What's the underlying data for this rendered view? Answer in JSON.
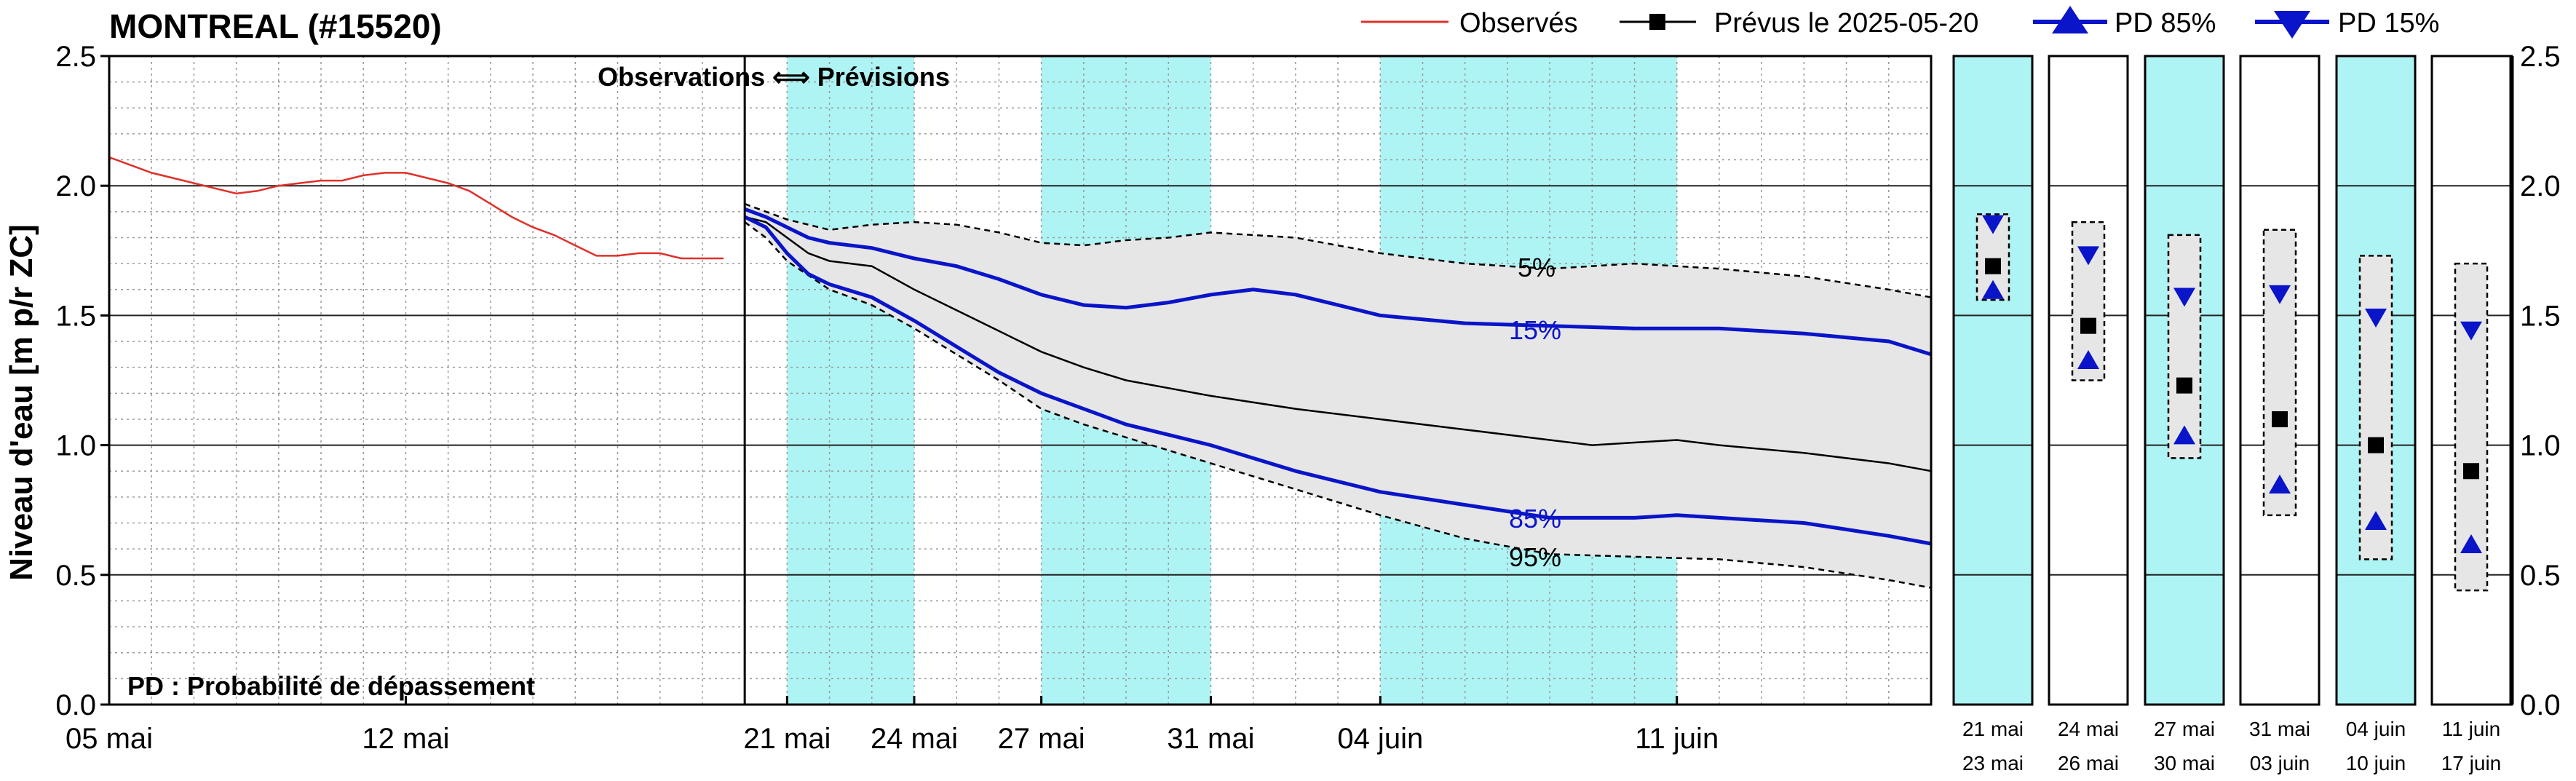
{
  "chart_data": {
    "type": "line",
    "title": "MONTREAL (#15520)",
    "ylabel": "Niveau d'eau [m p/r ZC]",
    "ylim": [
      0.0,
      2.5
    ],
    "yticks": [
      "0.0",
      "0.5",
      "1.0",
      "1.5",
      "2.0",
      "2.5"
    ],
    "grid": true,
    "legend_position": "top-right",
    "x_tick_labels": [
      {
        "day": 0,
        "label": "05 mai"
      },
      {
        "day": 7,
        "label": "12 mai"
      },
      {
        "day": 16,
        "label": "21 mai"
      },
      {
        "day": 19,
        "label": "24 mai"
      },
      {
        "day": 22,
        "label": "27 mai"
      },
      {
        "day": 26,
        "label": "31 mai"
      },
      {
        "day": 30,
        "label": "04 juin"
      },
      {
        "day": 37,
        "label": "11 juin"
      }
    ],
    "x_end_day": 43,
    "forecast_start_day": 15,
    "shaded_periods": [
      [
        16,
        19
      ],
      [
        22,
        26
      ],
      [
        30,
        37
      ]
    ],
    "annotations": {
      "obs_forecast": "Observations ⟺ Prévisions",
      "pd_note": "PD : Probabilité de dépassement",
      "p5": "5%",
      "p15": "15%",
      "p85": "85%",
      "p95": "95%"
    },
    "legend": {
      "observed": "Observés",
      "forecast": "Prévus le 2025-05-20",
      "pd85": "PD 85%",
      "pd15": "PD 15%"
    },
    "colors": {
      "observed": "#e0302a",
      "forecast": "#000000",
      "pd": "#0a14c8",
      "band": "#e6e6e6",
      "shade": "#aef4f4"
    },
    "series": [
      {
        "name": "Observés",
        "x": [
          0,
          0.5,
          1,
          1.5,
          2,
          2.5,
          3,
          3.5,
          4,
          4.5,
          5,
          5.5,
          6,
          6.5,
          7,
          7.5,
          8,
          8.5,
          9,
          9.5,
          10,
          10.5,
          11,
          11.5,
          12,
          12.5,
          13,
          13.5,
          14,
          14.5
        ],
        "values": [
          2.11,
          2.08,
          2.05,
          2.03,
          2.01,
          1.99,
          1.97,
          1.98,
          2.0,
          2.01,
          2.02,
          2.02,
          2.04,
          2.05,
          2.05,
          2.03,
          2.01,
          1.98,
          1.93,
          1.88,
          1.84,
          1.81,
          1.77,
          1.73,
          1.73,
          1.74,
          1.74,
          1.72,
          1.72,
          1.72
        ]
      },
      {
        "name": "Prévus le 2025-05-20",
        "x": [
          15,
          15.5,
          16,
          16.5,
          17,
          18,
          19,
          20,
          21,
          22,
          23,
          24,
          25,
          26,
          28,
          30,
          32,
          34,
          35,
          36,
          37,
          38,
          40,
          42,
          43
        ],
        "values": [
          1.88,
          1.86,
          1.8,
          1.74,
          1.71,
          1.69,
          1.6,
          1.52,
          1.44,
          1.36,
          1.3,
          1.25,
          1.22,
          1.19,
          1.14,
          1.1,
          1.06,
          1.02,
          1.0,
          1.01,
          1.02,
          1.0,
          0.97,
          0.93,
          0.9
        ]
      },
      {
        "name": "PD 15%",
        "x": [
          15,
          15.5,
          16,
          16.5,
          17,
          18,
          19,
          20,
          21,
          22,
          23,
          24,
          25,
          26,
          27,
          28,
          29,
          30,
          32,
          34,
          36,
          38,
          40,
          42,
          43
        ],
        "values": [
          1.91,
          1.88,
          1.84,
          1.8,
          1.78,
          1.76,
          1.72,
          1.69,
          1.64,
          1.58,
          1.54,
          1.53,
          1.55,
          1.58,
          1.6,
          1.58,
          1.54,
          1.5,
          1.47,
          1.46,
          1.45,
          1.45,
          1.43,
          1.4,
          1.35
        ]
      },
      {
        "name": "PD 85%",
        "x": [
          15,
          15.5,
          16,
          16.5,
          17,
          18,
          19,
          20,
          21,
          22,
          23,
          24,
          25,
          26,
          28,
          30,
          32,
          34,
          36,
          37,
          38,
          40,
          42,
          43
        ],
        "values": [
          1.88,
          1.84,
          1.74,
          1.66,
          1.62,
          1.57,
          1.48,
          1.38,
          1.28,
          1.2,
          1.14,
          1.08,
          1.04,
          1.0,
          0.9,
          0.82,
          0.77,
          0.72,
          0.72,
          0.73,
          0.72,
          0.7,
          0.65,
          0.62
        ]
      },
      {
        "name": "5%",
        "x": [
          15,
          15.5,
          16,
          17,
          18,
          19,
          20,
          21,
          22,
          23,
          24,
          25,
          26,
          28,
          30,
          32,
          34,
          36,
          38,
          40,
          42,
          43
        ],
        "values": [
          1.93,
          1.9,
          1.87,
          1.83,
          1.85,
          1.86,
          1.85,
          1.82,
          1.78,
          1.77,
          1.79,
          1.8,
          1.82,
          1.8,
          1.74,
          1.7,
          1.68,
          1.7,
          1.68,
          1.65,
          1.6,
          1.57
        ]
      },
      {
        "name": "95%",
        "x": [
          15,
          15.5,
          16,
          17,
          18,
          19,
          20,
          21,
          22,
          23,
          24,
          25,
          26,
          27,
          28,
          30,
          32,
          34,
          36,
          38,
          40,
          42,
          43
        ],
        "values": [
          1.86,
          1.8,
          1.71,
          1.6,
          1.54,
          1.45,
          1.35,
          1.25,
          1.14,
          1.08,
          1.03,
          0.98,
          0.93,
          0.88,
          0.83,
          0.73,
          0.64,
          0.58,
          0.57,
          0.56,
          0.53,
          0.48,
          0.45
        ]
      }
    ],
    "period_boxes": [
      {
        "from": "21 mai",
        "to": "23 mai",
        "shaded": true,
        "top": 1.89,
        "bottom": 1.56,
        "forecast": 1.69,
        "pd15": 1.85,
        "pd85": 1.6
      },
      {
        "from": "24 mai",
        "to": "26 mai",
        "shaded": false,
        "top": 1.86,
        "bottom": 1.25,
        "forecast": 1.46,
        "pd15": 1.73,
        "pd85": 1.33
      },
      {
        "from": "27 mai",
        "to": "30 mai",
        "shaded": true,
        "top": 1.81,
        "bottom": 0.95,
        "forecast": 1.23,
        "pd15": 1.57,
        "pd85": 1.04
      },
      {
        "from": "31 mai",
        "to": "03 juin",
        "shaded": false,
        "top": 1.83,
        "bottom": 0.73,
        "forecast": 1.1,
        "pd15": 1.58,
        "pd85": 0.85
      },
      {
        "from": "04 juin",
        "to": "10 juin",
        "shaded": true,
        "top": 1.73,
        "bottom": 0.56,
        "forecast": 1.0,
        "pd15": 1.49,
        "pd85": 0.71
      },
      {
        "from": "11 juin",
        "to": "17 juin",
        "shaded": false,
        "top": 1.7,
        "bottom": 0.44,
        "forecast": 0.9,
        "pd15": 1.44,
        "pd85": 0.62
      }
    ]
  }
}
